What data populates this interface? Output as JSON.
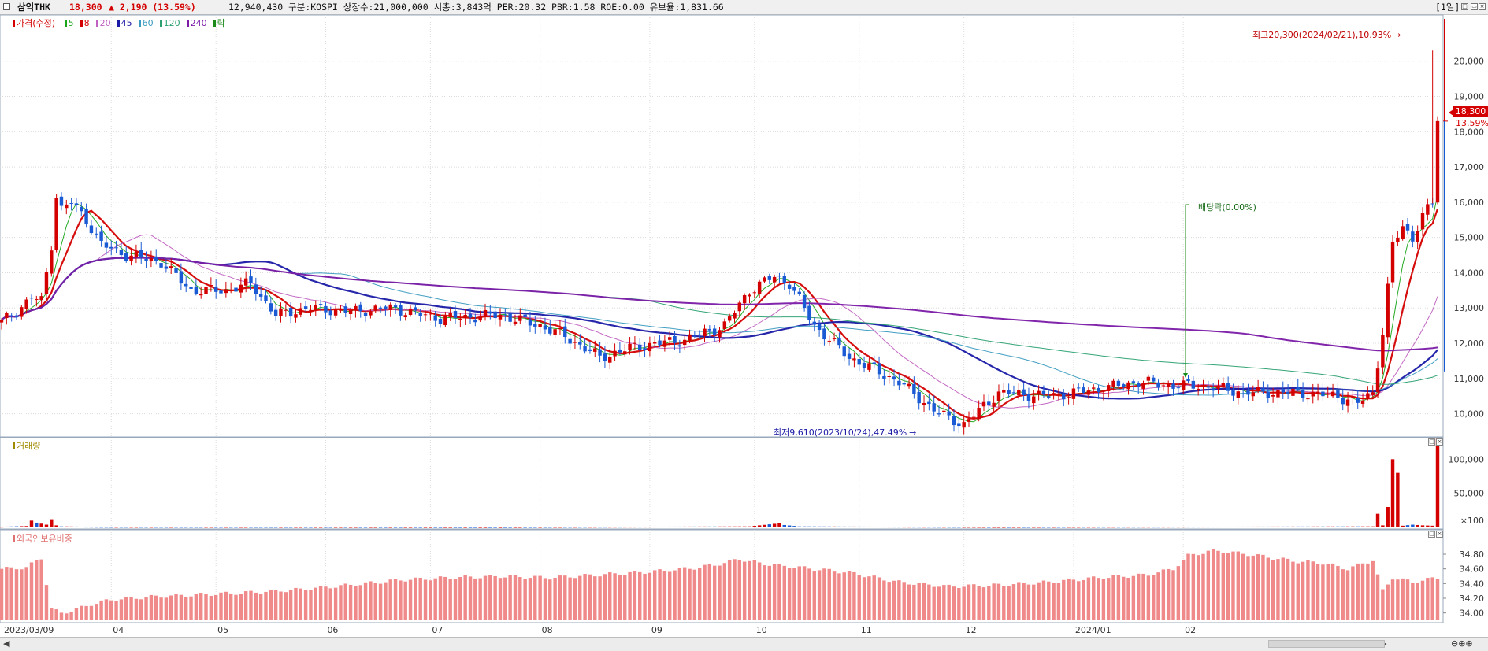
{
  "header": {
    "name": "삼익THK",
    "price": "18,300",
    "change": "▲ 2,190 (13.59%)",
    "stats": "12,940,430  구분:KOSPI 상장수:21,000,000 시총:3,843억 PER:20.32 PBR:1.58 ROE:0.00 유보율:1,831.66",
    "period": "[1일]"
  },
  "legend": {
    "price": {
      "label": "가격(수정)",
      "color": "#d40000"
    },
    "mas": [
      {
        "label": "5",
        "color": "#1aa61a"
      },
      {
        "label": "8",
        "color": "#d40000"
      },
      {
        "label": "20",
        "color": "#c060c0"
      },
      {
        "label": "45",
        "color": "#1a1aa6"
      },
      {
        "label": "60",
        "color": "#3a9ac0"
      },
      {
        "label": "120",
        "color": "#2aa070"
      },
      {
        "label": "240",
        "color": "#7a1aa6"
      },
      {
        "label": "락",
        "color": "#1a8a1a"
      }
    ]
  },
  "volume_panel": {
    "label": "거래량",
    "color": "#a08a00"
  },
  "foreign_panel": {
    "label": "외국인보유비중",
    "color": "#e07070"
  },
  "annotations": {
    "high": "최고20,300(2024/02/21),10.93%",
    "low": "최저9,610(2023/10/24),47.49%",
    "dividend": "배당락(0.00%)",
    "price_tag": "18,300",
    "pct_tag": "13.59%"
  },
  "chart_data": [
    {
      "type": "candlestick",
      "title": "가격(수정)",
      "x_ticks": [
        "2023/03/09",
        "04",
        "05",
        "06",
        "07",
        "08",
        "09",
        "10",
        "11",
        "12",
        "2024/01",
        "02"
      ],
      "y_ticks": [
        "10,000",
        "11,000",
        "12,000",
        "13,000",
        "14,000",
        "15,000",
        "16,000",
        "17,000",
        "18,000",
        "19,000",
        "20,000"
      ],
      "ylim": [
        9500,
        21200
      ],
      "last_close": 18300,
      "high": {
        "value": 20300,
        "date": "2024/02/21"
      },
      "low": {
        "value": 9610,
        "date": "2023/10/24"
      },
      "close_anchors": [
        [
          0,
          12600
        ],
        [
          3,
          12900
        ],
        [
          6,
          13300
        ],
        [
          8,
          13200
        ],
        [
          10,
          14800
        ],
        [
          11,
          16200
        ],
        [
          12,
          15800
        ],
        [
          14,
          16000
        ],
        [
          17,
          15500
        ],
        [
          20,
          14800
        ],
        [
          25,
          14500
        ],
        [
          32,
          14300
        ],
        [
          38,
          13500
        ],
        [
          45,
          13500
        ],
        [
          50,
          13700
        ],
        [
          55,
          12800
        ],
        [
          62,
          13000
        ],
        [
          70,
          12900
        ],
        [
          78,
          13000
        ],
        [
          88,
          12700
        ],
        [
          100,
          12800
        ],
        [
          108,
          12500
        ],
        [
          113,
          12200
        ],
        [
          120,
          11600
        ],
        [
          127,
          11900
        ],
        [
          137,
          12100
        ],
        [
          145,
          12500
        ],
        [
          150,
          13500
        ],
        [
          155,
          13900
        ],
        [
          158,
          13700
        ],
        [
          163,
          12500
        ],
        [
          170,
          11600
        ],
        [
          180,
          10900
        ],
        [
          188,
          10000
        ],
        [
          193,
          9700
        ],
        [
          200,
          10600
        ],
        [
          210,
          10500
        ],
        [
          220,
          10700
        ],
        [
          228,
          10900
        ],
        [
          235,
          10800
        ],
        [
          240,
          10800
        ],
        [
          250,
          10600
        ],
        [
          260,
          10600
        ],
        [
          268,
          10500
        ],
        [
          272,
          10300
        ],
        [
          275,
          10600
        ],
        [
          277,
          12300
        ],
        [
          279,
          14800
        ],
        [
          281,
          15300
        ],
        [
          283,
          15000
        ],
        [
          285,
          15600
        ],
        [
          287,
          16000
        ],
        [
          288,
          18300
        ]
      ],
      "series": [
        {
          "name": "5",
          "color": "#1aa61a"
        },
        {
          "name": "8",
          "color": "#d40000"
        },
        {
          "name": "20",
          "color": "#c060c0"
        },
        {
          "name": "45",
          "color": "#1a1aa6"
        },
        {
          "name": "60",
          "color": "#3a9ac0"
        },
        {
          "name": "120",
          "color": "#2aa070"
        },
        {
          "name": "240",
          "color": "#7a1aa6"
        }
      ]
    },
    {
      "type": "bar",
      "title": "거래량",
      "y_ticks": [
        "100,000",
        "50,000",
        "×100"
      ],
      "ylim": [
        0,
        120000
      ],
      "values_anchors": [
        [
          0,
          1000
        ],
        [
          5,
          2000
        ],
        [
          6,
          10000
        ],
        [
          7,
          7000
        ],
        [
          9,
          4000
        ],
        [
          10,
          12000
        ],
        [
          11,
          3000
        ],
        [
          12,
          1500
        ],
        [
          20,
          800
        ],
        [
          100,
          500
        ],
        [
          150,
          1500
        ],
        [
          156,
          6000
        ],
        [
          157,
          3500
        ],
        [
          160,
          1500
        ],
        [
          200,
          600
        ],
        [
          275,
          1500
        ],
        [
          276,
          20000
        ],
        [
          277,
          3000
        ],
        [
          278,
          30000
        ],
        [
          279,
          100000
        ],
        [
          280,
          80000
        ],
        [
          281,
          2500
        ],
        [
          283,
          4000
        ],
        [
          285,
          3000
        ],
        [
          287,
          2500
        ],
        [
          288,
          130000
        ]
      ]
    },
    {
      "type": "bar",
      "title": "외국인보유비중",
      "y_ticks": [
        "34.80",
        "34.60",
        "34.40",
        "34.20",
        "34.00"
      ],
      "ylim": [
        33.9,
        34.95
      ],
      "values_anchors": [
        [
          0,
          34.6
        ],
        [
          5,
          34.62
        ],
        [
          8,
          34.75
        ],
        [
          10,
          34.05
        ],
        [
          12,
          34.0
        ],
        [
          15,
          34.05
        ],
        [
          18,
          34.12
        ],
        [
          22,
          34.18
        ],
        [
          30,
          34.22
        ],
        [
          40,
          34.25
        ],
        [
          50,
          34.28
        ],
        [
          60,
          34.32
        ],
        [
          70,
          34.38
        ],
        [
          80,
          34.45
        ],
        [
          90,
          34.48
        ],
        [
          100,
          34.5
        ],
        [
          110,
          34.48
        ],
        [
          120,
          34.52
        ],
        [
          130,
          34.56
        ],
        [
          140,
          34.62
        ],
        [
          145,
          34.68
        ],
        [
          148,
          34.74
        ],
        [
          150,
          34.7
        ],
        [
          155,
          34.65
        ],
        [
          160,
          34.62
        ],
        [
          170,
          34.55
        ],
        [
          180,
          34.42
        ],
        [
          190,
          34.36
        ],
        [
          200,
          34.38
        ],
        [
          210,
          34.42
        ],
        [
          220,
          34.48
        ],
        [
          230,
          34.52
        ],
        [
          235,
          34.6
        ],
        [
          238,
          34.78
        ],
        [
          243,
          34.85
        ],
        [
          250,
          34.8
        ],
        [
          255,
          34.75
        ],
        [
          260,
          34.7
        ],
        [
          265,
          34.68
        ],
        [
          270,
          34.6
        ],
        [
          275,
          34.72
        ],
        [
          277,
          34.3
        ],
        [
          279,
          34.48
        ],
        [
          283,
          34.42
        ],
        [
          288,
          34.48
        ]
      ]
    }
  ]
}
